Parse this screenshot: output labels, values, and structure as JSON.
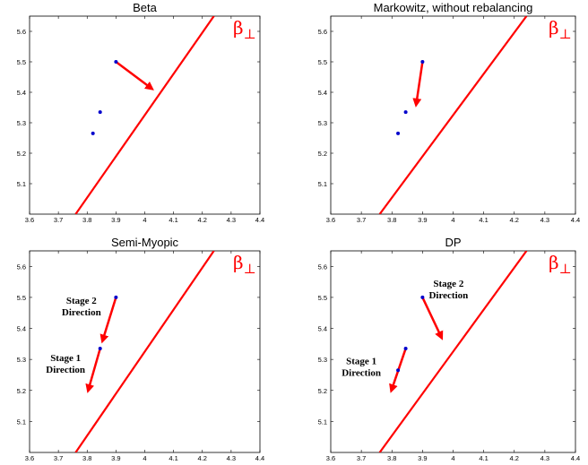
{
  "chart_data": [
    {
      "type": "scatter",
      "title": "Beta",
      "xlim": [
        3.6,
        4.4
      ],
      "ylim": [
        5.0,
        5.65
      ],
      "xticks": [
        "3.6",
        "3.7",
        "3.8",
        "3.9",
        "4",
        "4.1",
        "4.2",
        "4.3",
        "4.4"
      ],
      "yticks": [
        "5.1",
        "5.2",
        "5.3",
        "5.4",
        "5.5",
        "5.6"
      ],
      "points": [
        {
          "x": 3.82,
          "y": 5.265
        },
        {
          "x": 3.845,
          "y": 5.335
        },
        {
          "x": 3.9,
          "y": 5.5
        }
      ],
      "line": {
        "label": "β",
        "label_sub": "⊥",
        "from": {
          "x": 3.76,
          "y": 5.0
        },
        "to": {
          "x": 4.24,
          "y": 5.65
        }
      },
      "arrows": [
        {
          "from": {
            "x": 3.9,
            "y": 5.5
          },
          "to": {
            "x": 4.02,
            "y": 5.415
          }
        }
      ],
      "annotations": []
    },
    {
      "type": "scatter",
      "title": "Markowitz, without rebalancing",
      "xlim": [
        3.6,
        4.4
      ],
      "ylim": [
        5.0,
        5.65
      ],
      "xticks": [
        "3.6",
        "3.7",
        "3.8",
        "3.9",
        "4",
        "4.1",
        "4.2",
        "4.3",
        "4.4"
      ],
      "yticks": [
        "5.1",
        "5.2",
        "5.3",
        "5.4",
        "5.5",
        "5.6"
      ],
      "points": [
        {
          "x": 3.82,
          "y": 5.265
        },
        {
          "x": 3.845,
          "y": 5.335
        },
        {
          "x": 3.9,
          "y": 5.5
        }
      ],
      "line": {
        "label": "β",
        "label_sub": "⊥",
        "from": {
          "x": 3.76,
          "y": 5.0
        },
        "to": {
          "x": 4.24,
          "y": 5.65
        }
      },
      "arrows": [
        {
          "from": {
            "x": 3.9,
            "y": 5.5
          },
          "to": {
            "x": 3.88,
            "y": 5.365
          }
        }
      ],
      "annotations": []
    },
    {
      "type": "scatter",
      "title": "Semi-Myopic",
      "xlim": [
        3.6,
        4.4
      ],
      "ylim": [
        5.0,
        5.65
      ],
      "xticks": [
        "3.6",
        "3.7",
        "3.8",
        "3.9",
        "4",
        "4.1",
        "4.2",
        "4.3",
        "4.4"
      ],
      "yticks": [
        "5.1",
        "5.2",
        "5.3",
        "5.4",
        "5.5",
        "5.6"
      ],
      "points": [
        {
          "x": 3.845,
          "y": 5.335
        },
        {
          "x": 3.9,
          "y": 5.5
        }
      ],
      "line": {
        "label": "β",
        "label_sub": "⊥",
        "from": {
          "x": 3.76,
          "y": 5.0
        },
        "to": {
          "x": 4.24,
          "y": 5.65
        }
      },
      "arrows": [
        {
          "from": {
            "x": 3.9,
            "y": 5.5
          },
          "to": {
            "x": 3.855,
            "y": 5.365
          }
        },
        {
          "from": {
            "x": 3.845,
            "y": 5.335
          },
          "to": {
            "x": 3.805,
            "y": 5.205
          }
        }
      ],
      "annotations": [
        {
          "lines": [
            "Stage 2",
            "Direction"
          ],
          "x": 3.78,
          "y": 5.48
        },
        {
          "lines": [
            "Stage 1",
            "Direction"
          ],
          "x": 3.725,
          "y": 5.295
        }
      ]
    },
    {
      "type": "scatter",
      "title": "DP",
      "xlim": [
        3.6,
        4.4
      ],
      "ylim": [
        5.0,
        5.65
      ],
      "xticks": [
        "3.6",
        "3.7",
        "3.8",
        "3.9",
        "4",
        "4.1",
        "4.2",
        "4.3",
        "4.4"
      ],
      "yticks": [
        "5.1",
        "5.2",
        "5.3",
        "5.4",
        "5.5",
        "5.6"
      ],
      "points": [
        {
          "x": 3.82,
          "y": 5.265
        },
        {
          "x": 3.845,
          "y": 5.335
        },
        {
          "x": 3.9,
          "y": 5.5
        }
      ],
      "line": {
        "label": "β",
        "label_sub": "⊥",
        "from": {
          "x": 3.76,
          "y": 5.0
        },
        "to": {
          "x": 4.24,
          "y": 5.65
        }
      },
      "arrows": [
        {
          "from": {
            "x": 3.9,
            "y": 5.5
          },
          "to": {
            "x": 3.96,
            "y": 5.375
          }
        },
        {
          "from": {
            "x": 3.845,
            "y": 5.335
          },
          "to": {
            "x": 3.8,
            "y": 5.205
          }
        }
      ],
      "annotations": [
        {
          "lines": [
            "Stage 2",
            "Direction"
          ],
          "x": 3.985,
          "y": 5.535
        },
        {
          "lines": [
            "Stage 1",
            "Direction"
          ],
          "x": 3.7,
          "y": 5.285
        }
      ]
    }
  ],
  "colors": {
    "line": "#ff0000",
    "arrow": "#ff0000",
    "point": "#0000cc",
    "axis": "#000000"
  }
}
